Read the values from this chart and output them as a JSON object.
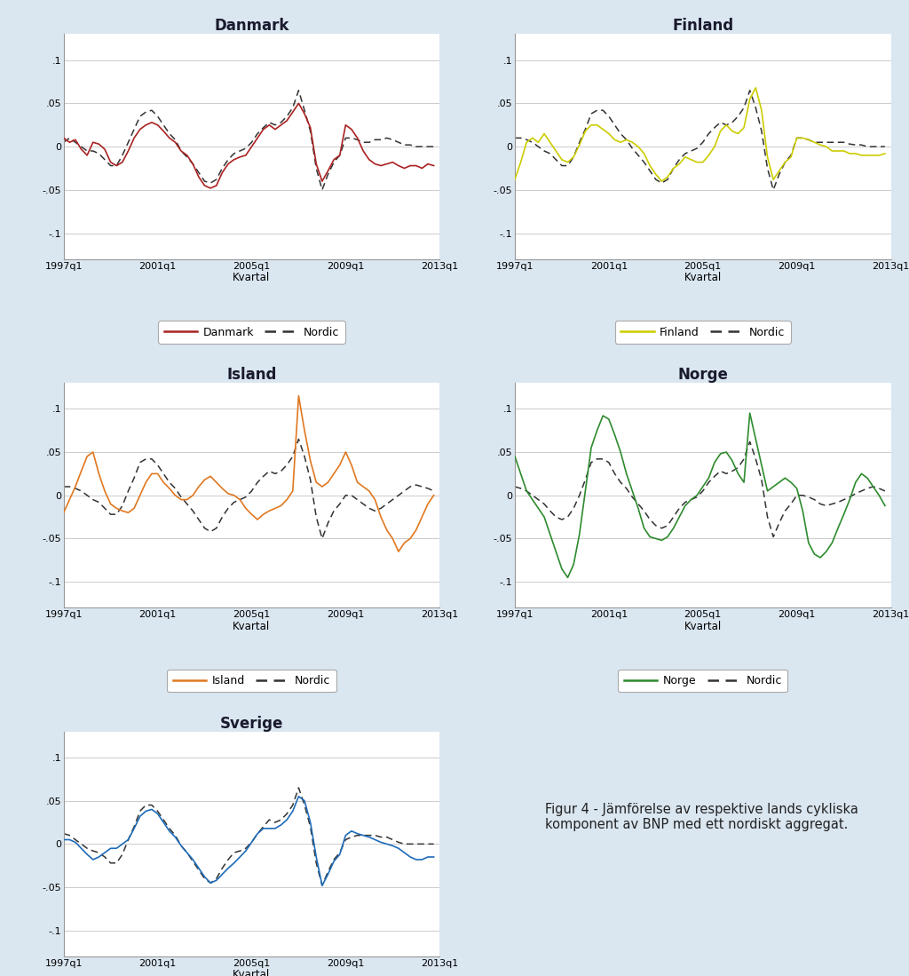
{
  "background_color": "#dae6f0",
  "plot_bg_color": "#ffffff",
  "fig_title_fontsize": 12,
  "axis_label_fontsize": 8.5,
  "tick_fontsize": 8,
  "legend_fontsize": 9,
  "ylim": [
    -0.13,
    0.13
  ],
  "yticks": [
    -0.1,
    -0.05,
    0,
    0.05,
    0.1
  ],
  "ytick_labels": [
    "-.1",
    "-.05",
    "0",
    ".05",
    ".1"
  ],
  "xlabel": "Kvartal",
  "xtick_labels": [
    "1997q1",
    "2001q1",
    "2005q1",
    "2009q1",
    "2013q1"
  ],
  "countries": [
    "Danmark",
    "Finland",
    "Island",
    "Norge",
    "Sverige"
  ],
  "country_colors": [
    "#aa2222",
    "#cccc00",
    "#e07820",
    "#2e8b2e",
    "#1e6bb8"
  ],
  "nordic_color": "#333333",
  "text_panel": "Figur 4 - Jämförelse av respektive lands cykliska\nkomponent av BNP med ett nordiskt aggregat.",
  "danmark": [
    0.01,
    0.005,
    0.008,
    -0.003,
    -0.01,
    0.005,
    0.003,
    -0.003,
    -0.018,
    -0.022,
    -0.018,
    -0.005,
    0.01,
    0.02,
    0.025,
    0.028,
    0.025,
    0.018,
    0.01,
    0.005,
    -0.005,
    -0.01,
    -0.02,
    -0.035,
    -0.045,
    -0.048,
    -0.045,
    -0.03,
    -0.02,
    -0.015,
    -0.012,
    -0.01,
    0.0,
    0.01,
    0.02,
    0.025,
    0.02,
    0.025,
    0.03,
    0.04,
    0.05,
    0.038,
    0.022,
    -0.02,
    -0.04,
    -0.028,
    -0.015,
    -0.01,
    0.025,
    0.02,
    0.01,
    -0.005,
    -0.015,
    -0.02,
    -0.022,
    -0.02,
    -0.018,
    -0.022,
    -0.025,
    -0.022,
    -0.022,
    -0.025,
    -0.02,
    -0.022
  ],
  "nordic_dk": [
    0.005,
    0.01,
    0.005,
    0.0,
    -0.005,
    -0.005,
    -0.008,
    -0.015,
    -0.022,
    -0.022,
    -0.01,
    0.005,
    0.02,
    0.035,
    0.04,
    0.042,
    0.035,
    0.025,
    0.015,
    0.008,
    -0.005,
    -0.012,
    -0.02,
    -0.03,
    -0.04,
    -0.042,
    -0.038,
    -0.025,
    -0.015,
    -0.008,
    -0.005,
    -0.002,
    0.005,
    0.015,
    0.022,
    0.028,
    0.025,
    0.028,
    0.035,
    0.045,
    0.065,
    0.042,
    0.018,
    -0.025,
    -0.05,
    -0.032,
    -0.018,
    -0.01,
    0.01,
    0.01,
    0.008,
    0.005,
    0.005,
    0.008,
    0.008,
    0.01,
    0.008,
    0.005,
    0.002,
    0.002,
    0.0,
    0.0,
    0.0,
    0.0
  ],
  "finland": [
    -0.038,
    -0.018,
    0.005,
    0.01,
    0.005,
    0.015,
    0.005,
    -0.005,
    -0.015,
    -0.018,
    -0.012,
    0.002,
    0.018,
    0.025,
    0.025,
    0.02,
    0.015,
    0.008,
    0.005,
    0.008,
    0.005,
    0.0,
    -0.008,
    -0.022,
    -0.032,
    -0.04,
    -0.035,
    -0.025,
    -0.02,
    -0.012,
    -0.015,
    -0.018,
    -0.018,
    -0.01,
    0.0,
    0.018,
    0.025,
    0.018,
    0.015,
    0.022,
    0.055,
    0.068,
    0.042,
    -0.012,
    -0.038,
    -0.028,
    -0.018,
    -0.012,
    0.01,
    0.01,
    0.008,
    0.005,
    0.002,
    0.0,
    -0.005,
    -0.005,
    -0.005,
    -0.008,
    -0.008,
    -0.01,
    -0.01,
    -0.01,
    -0.01,
    -0.008
  ],
  "nordic_fi": [
    0.01,
    0.01,
    0.008,
    0.005,
    0.0,
    -0.005,
    -0.008,
    -0.015,
    -0.022,
    -0.022,
    -0.012,
    0.005,
    0.02,
    0.038,
    0.042,
    0.042,
    0.035,
    0.025,
    0.015,
    0.008,
    -0.002,
    -0.01,
    -0.018,
    -0.028,
    -0.038,
    -0.042,
    -0.038,
    -0.025,
    -0.015,
    -0.008,
    -0.005,
    -0.002,
    0.005,
    0.015,
    0.022,
    0.028,
    0.025,
    0.028,
    0.035,
    0.045,
    0.065,
    0.045,
    0.018,
    -0.025,
    -0.05,
    -0.032,
    -0.018,
    -0.01,
    0.01,
    0.01,
    0.008,
    0.005,
    0.005,
    0.005,
    0.005,
    0.005,
    0.005,
    0.003,
    0.002,
    0.002,
    0.0,
    0.0,
    0.0,
    0.0
  ],
  "island": [
    -0.02,
    -0.005,
    0.01,
    0.028,
    0.045,
    0.05,
    0.025,
    0.005,
    -0.01,
    -0.015,
    -0.018,
    -0.02,
    -0.015,
    0.0,
    0.015,
    0.025,
    0.025,
    0.015,
    0.008,
    0.0,
    -0.005,
    -0.005,
    0.0,
    0.01,
    0.018,
    0.022,
    0.015,
    0.008,
    0.002,
    0.0,
    -0.005,
    -0.015,
    -0.022,
    -0.028,
    -0.022,
    -0.018,
    -0.015,
    -0.012,
    -0.005,
    0.005,
    0.115,
    0.075,
    0.04,
    0.015,
    0.01,
    0.015,
    0.025,
    0.035,
    0.05,
    0.035,
    0.015,
    0.01,
    0.005,
    -0.005,
    -0.025,
    -0.04,
    -0.05,
    -0.065,
    -0.055,
    -0.05,
    -0.04,
    -0.025,
    -0.01,
    0.0
  ],
  "nordic_is": [
    0.01,
    0.01,
    0.008,
    0.005,
    0.0,
    -0.005,
    -0.008,
    -0.015,
    -0.022,
    -0.022,
    -0.012,
    0.005,
    0.02,
    0.038,
    0.042,
    0.042,
    0.035,
    0.025,
    0.015,
    0.008,
    -0.002,
    -0.01,
    -0.018,
    -0.028,
    -0.038,
    -0.042,
    -0.038,
    -0.025,
    -0.015,
    -0.008,
    -0.005,
    -0.002,
    0.005,
    0.015,
    0.022,
    0.028,
    0.025,
    0.028,
    0.035,
    0.045,
    0.065,
    0.045,
    0.018,
    -0.025,
    -0.05,
    -0.032,
    -0.018,
    -0.01,
    0.0,
    0.0,
    -0.005,
    -0.01,
    -0.015,
    -0.018,
    -0.015,
    -0.01,
    -0.005,
    0.0,
    0.005,
    0.01,
    0.012,
    0.01,
    0.008,
    0.005
  ],
  "norge": [
    0.045,
    0.025,
    0.005,
    -0.005,
    -0.015,
    -0.025,
    -0.045,
    -0.065,
    -0.085,
    -0.095,
    -0.08,
    -0.045,
    0.005,
    0.055,
    0.075,
    0.092,
    0.088,
    0.07,
    0.05,
    0.025,
    0.005,
    -0.015,
    -0.038,
    -0.048,
    -0.05,
    -0.052,
    -0.048,
    -0.038,
    -0.025,
    -0.012,
    -0.005,
    0.0,
    0.01,
    0.02,
    0.038,
    0.048,
    0.05,
    0.04,
    0.025,
    0.015,
    0.095,
    0.065,
    0.035,
    0.005,
    0.01,
    0.015,
    0.02,
    0.015,
    0.008,
    -0.018,
    -0.055,
    -0.068,
    -0.072,
    -0.065,
    -0.055,
    -0.038,
    -0.022,
    -0.005,
    0.015,
    0.025,
    0.02,
    0.01,
    0.0,
    -0.012
  ],
  "nordic_no": [
    0.01,
    0.008,
    0.005,
    0.0,
    -0.005,
    -0.01,
    -0.018,
    -0.025,
    -0.028,
    -0.025,
    -0.015,
    0.0,
    0.018,
    0.038,
    0.042,
    0.042,
    0.038,
    0.025,
    0.015,
    0.008,
    -0.002,
    -0.01,
    -0.018,
    -0.028,
    -0.035,
    -0.038,
    -0.035,
    -0.025,
    -0.015,
    -0.008,
    -0.005,
    -0.002,
    0.005,
    0.015,
    0.022,
    0.028,
    0.025,
    0.028,
    0.032,
    0.042,
    0.062,
    0.042,
    0.018,
    -0.025,
    -0.048,
    -0.032,
    -0.018,
    -0.01,
    0.0,
    0.0,
    -0.002,
    -0.005,
    -0.01,
    -0.012,
    -0.01,
    -0.008,
    -0.005,
    -0.002,
    0.002,
    0.005,
    0.008,
    0.01,
    0.008,
    0.005
  ],
  "sverige": [
    0.005,
    0.005,
    0.002,
    -0.005,
    -0.012,
    -0.018,
    -0.015,
    -0.01,
    -0.005,
    -0.005,
    0.0,
    0.005,
    0.018,
    0.032,
    0.038,
    0.04,
    0.035,
    0.025,
    0.015,
    0.008,
    -0.002,
    -0.01,
    -0.018,
    -0.028,
    -0.038,
    -0.045,
    -0.042,
    -0.035,
    -0.028,
    -0.022,
    -0.015,
    -0.008,
    0.002,
    0.012,
    0.018,
    0.018,
    0.018,
    0.022,
    0.028,
    0.038,
    0.055,
    0.05,
    0.025,
    -0.015,
    -0.048,
    -0.035,
    -0.02,
    -0.012,
    0.01,
    0.015,
    0.012,
    0.01,
    0.008,
    0.005,
    0.002,
    0.0,
    -0.002,
    -0.005,
    -0.01,
    -0.015,
    -0.018,
    -0.018,
    -0.015,
    -0.015
  ],
  "nordic_sv": [
    0.012,
    0.01,
    0.005,
    0.0,
    -0.005,
    -0.008,
    -0.01,
    -0.015,
    -0.022,
    -0.022,
    -0.012,
    0.005,
    0.02,
    0.038,
    0.045,
    0.045,
    0.038,
    0.028,
    0.018,
    0.01,
    -0.002,
    -0.01,
    -0.02,
    -0.03,
    -0.04,
    -0.045,
    -0.04,
    -0.028,
    -0.018,
    -0.01,
    -0.008,
    -0.005,
    0.002,
    0.012,
    0.02,
    0.028,
    0.025,
    0.028,
    0.035,
    0.045,
    0.065,
    0.045,
    0.02,
    -0.022,
    -0.048,
    -0.032,
    -0.018,
    -0.01,
    0.005,
    0.008,
    0.01,
    0.01,
    0.01,
    0.01,
    0.008,
    0.008,
    0.005,
    0.002,
    0.0,
    0.0,
    0.0,
    0.0,
    0.0,
    0.0
  ]
}
